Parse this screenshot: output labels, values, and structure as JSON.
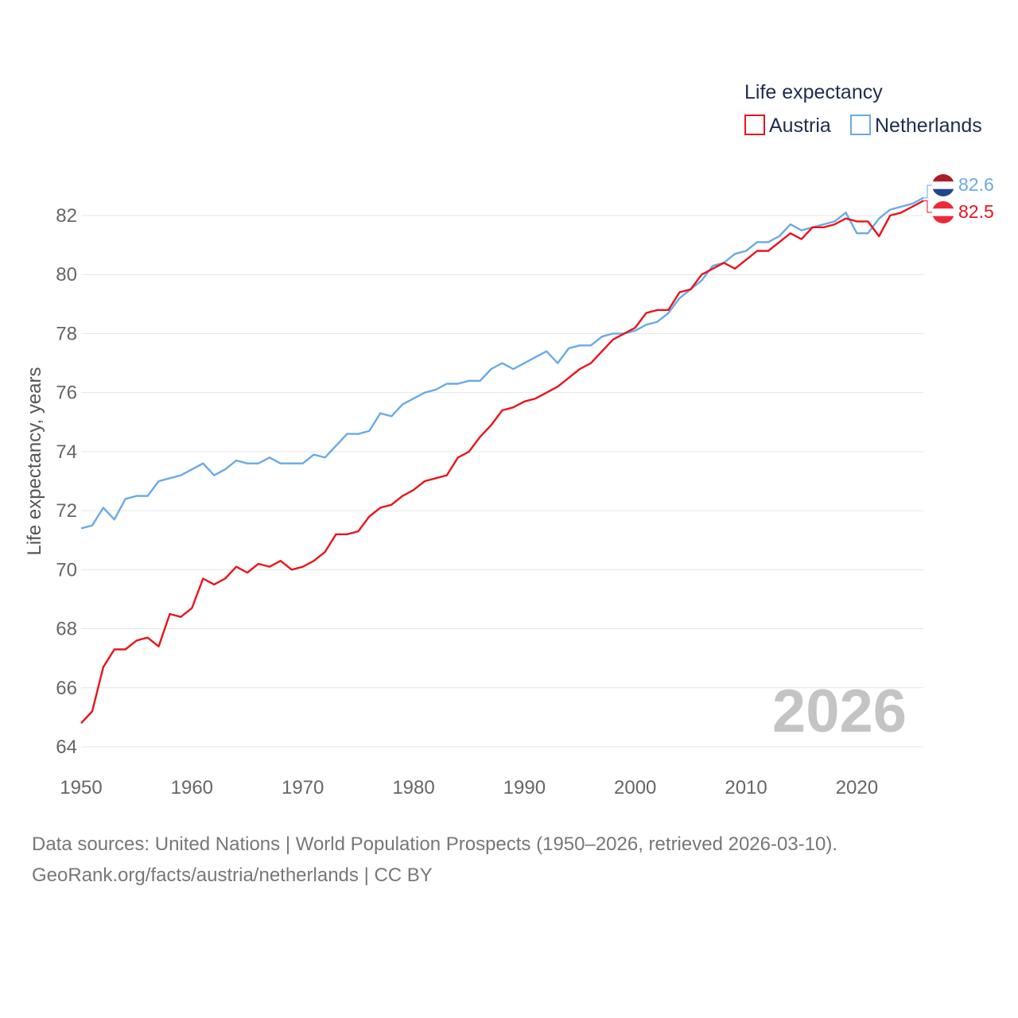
{
  "chart_data": {
    "type": "line",
    "legend": {
      "title": "Life expectancy",
      "position": "top-right"
    },
    "ylabel": "Life expectancy, years",
    "xlabel": "",
    "xlim": [
      1950,
      2026
    ],
    "ylim": [
      64,
      83
    ],
    "x_ticks": [
      1950,
      1960,
      1970,
      1980,
      1990,
      2000,
      2010,
      2020
    ],
    "y_ticks": [
      64,
      66,
      68,
      70,
      72,
      74,
      76,
      78,
      80,
      82
    ],
    "current_year": "2026",
    "x": [
      1950,
      1951,
      1952,
      1953,
      1954,
      1955,
      1956,
      1957,
      1958,
      1959,
      1960,
      1961,
      1962,
      1963,
      1964,
      1965,
      1966,
      1967,
      1968,
      1969,
      1970,
      1971,
      1972,
      1973,
      1974,
      1975,
      1976,
      1977,
      1978,
      1979,
      1980,
      1981,
      1982,
      1983,
      1984,
      1985,
      1986,
      1987,
      1988,
      1989,
      1990,
      1991,
      1992,
      1993,
      1994,
      1995,
      1996,
      1997,
      1998,
      1999,
      2000,
      2001,
      2002,
      2003,
      2004,
      2005,
      2006,
      2007,
      2008,
      2009,
      2010,
      2011,
      2012,
      2013,
      2014,
      2015,
      2016,
      2017,
      2018,
      2019,
      2020,
      2021,
      2022,
      2023,
      2024,
      2025,
      2026
    ],
    "series": [
      {
        "name": "Austria",
        "color": "#e8141e",
        "end_label": "82.5",
        "values": [
          64.8,
          65.2,
          66.7,
          67.3,
          67.3,
          67.6,
          67.7,
          67.4,
          68.5,
          68.4,
          68.7,
          69.7,
          69.5,
          69.7,
          70.1,
          69.9,
          70.2,
          70.1,
          70.3,
          70.0,
          70.1,
          70.3,
          70.6,
          71.2,
          71.2,
          71.3,
          71.8,
          72.1,
          72.2,
          72.5,
          72.7,
          73.0,
          73.1,
          73.2,
          73.8,
          74.0,
          74.5,
          74.9,
          75.4,
          75.5,
          75.7,
          75.8,
          76.0,
          76.2,
          76.5,
          76.8,
          77.0,
          77.4,
          77.8,
          78.0,
          78.2,
          78.7,
          78.8,
          78.8,
          79.4,
          79.5,
          80.0,
          80.2,
          80.4,
          80.2,
          80.5,
          80.8,
          80.8,
          81.1,
          81.4,
          81.2,
          81.6,
          81.6,
          81.7,
          81.9,
          81.8,
          81.8,
          81.3,
          82.0,
          82.1,
          82.3,
          82.5
        ]
      },
      {
        "name": "Netherlands",
        "color": "#6aaae6",
        "end_label": "82.6",
        "values": [
          71.4,
          71.5,
          72.1,
          71.7,
          72.4,
          72.5,
          72.5,
          73.0,
          73.1,
          73.2,
          73.4,
          73.6,
          73.2,
          73.4,
          73.7,
          73.6,
          73.6,
          73.8,
          73.6,
          73.6,
          73.6,
          73.9,
          73.8,
          74.2,
          74.6,
          74.6,
          74.7,
          75.3,
          75.2,
          75.6,
          75.8,
          76.0,
          76.1,
          76.3,
          76.3,
          76.4,
          76.4,
          76.8,
          77.0,
          76.8,
          77.0,
          77.2,
          77.4,
          77.0,
          77.5,
          77.6,
          77.6,
          77.9,
          78.0,
          78.0,
          78.1,
          78.3,
          78.4,
          78.7,
          79.2,
          79.5,
          79.8,
          80.3,
          80.4,
          80.7,
          80.8,
          81.1,
          81.1,
          81.3,
          81.7,
          81.5,
          81.6,
          81.7,
          81.8,
          82.1,
          81.4,
          81.4,
          81.9,
          82.2,
          82.3,
          82.4,
          82.6
        ]
      }
    ]
  },
  "flags": {
    "austria": {
      "colors": [
        "#ed2939",
        "#ffffff",
        "#ed2939"
      ]
    },
    "netherlands": {
      "colors": [
        "#ae1c28",
        "#ffffff",
        "#21468b"
      ]
    }
  },
  "footer": {
    "line1": "Data sources: United Nations | World Population Prospects (1950–2026, retrieved 2026-03-10).",
    "line2": "GeoRank.org/facts/austria/netherlands | CC BY"
  }
}
